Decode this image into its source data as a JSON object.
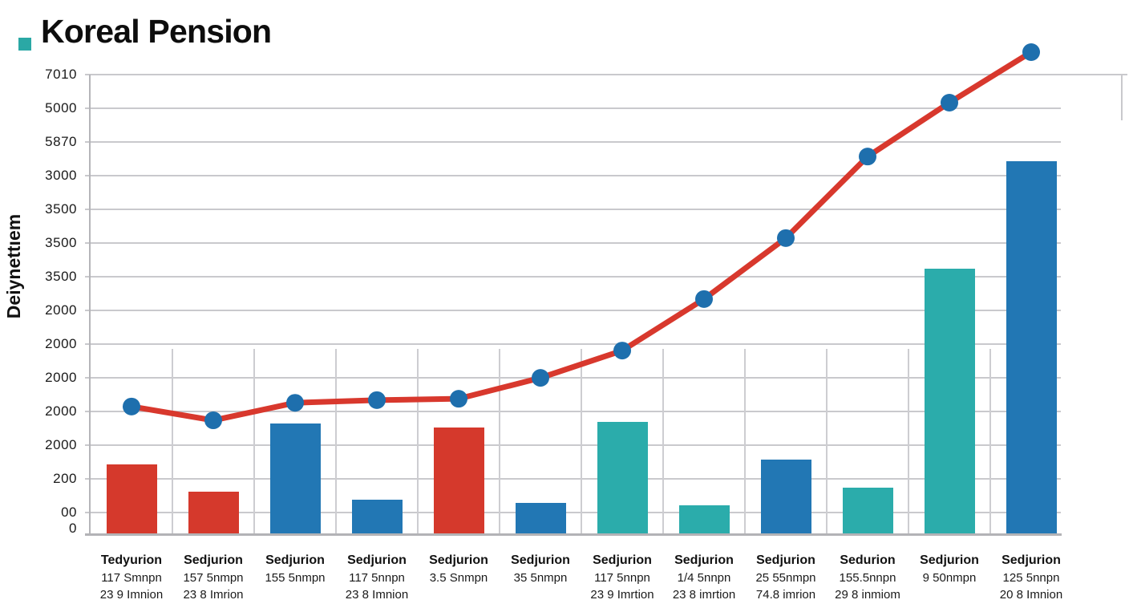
{
  "header": {
    "title": "Koreal Pension",
    "bullet_color": "#2aa8a5"
  },
  "chart_data": {
    "type": "bar",
    "subtype": "bar-with-line-overlay",
    "title": "Koreal Pension",
    "xlabel": "",
    "ylabel": "Deiynettıem",
    "grid": "horizontal-on, partial-vertical-on",
    "legend": "none",
    "value_units_note": "values estimated in gridline units (1 unit = one horizontal gridline gap); axis tick text is garbled in source image",
    "y_tick_labels": [
      "7010",
      "5000",
      "5870",
      "3000",
      "3500",
      "3500",
      "3500",
      "2000",
      "2000",
      "2000",
      "2000",
      "2000",
      "200",
      "00",
      "0"
    ],
    "categories": [
      {
        "line1": "Tedyurion",
        "line2": "117 Smnpn",
        "line3": "23 9 Imnion"
      },
      {
        "line1": "Sedjurion",
        "line2": "157 5nmpn",
        "line3": "23 8 Imrion"
      },
      {
        "line1": "Sedjurion",
        "line2": "155 5nmpn",
        "line3": ""
      },
      {
        "line1": "Sedjurion",
        "line2": "117 5nnpn",
        "line3": "23 8 Imnion"
      },
      {
        "line1": "Sedjurion",
        "line2": "3.5 Snmpn",
        "line3": ""
      },
      {
        "line1": "Sedjurion",
        "line2": "35 5nmpn",
        "line3": ""
      },
      {
        "line1": "Sedjurion",
        "line2": "117 5nnpn",
        "line3": "23 9 Imrtion"
      },
      {
        "line1": "Sedjurion",
        "line2": "1/4 5nnpn",
        "line3": "23 8 imrtion"
      },
      {
        "line1": "Sedjurion",
        "line2": "25 55nmpn",
        "line3": "74.8 imrion"
      },
      {
        "line1": "Sedurion",
        "line2": "155.5nnpn",
        "line3": "29 8 inmiom"
      },
      {
        "line1": "Sedjurion",
        "line2": "9 50nmpn",
        "line3": ""
      },
      {
        "line1": "Sedjurion",
        "line2": "125 5nnpn",
        "line3": "20 8 Imnion"
      }
    ],
    "series": [
      {
        "name": "bars",
        "kind": "bar",
        "values": [
          2.07,
          1.26,
          3.29,
          1.02,
          3.17,
          0.93,
          3.33,
          0.86,
          2.21,
          1.38,
          7.88,
          11.07
        ],
        "colors": [
          "red",
          "red",
          "blue",
          "blue",
          "red",
          "blue",
          "teal",
          "teal",
          "blue",
          "teal",
          "teal",
          "blue"
        ]
      },
      {
        "name": "trend-line",
        "kind": "line",
        "values": [
          3.79,
          3.38,
          3.9,
          3.98,
          4.02,
          4.64,
          5.45,
          6.98,
          8.79,
          11.21,
          12.81,
          14.31
        ]
      }
    ],
    "palette": {
      "red": "#d5392c",
      "blue": "#2277b4",
      "teal": "#2bacab",
      "line": "#d8382d",
      "marker": "#1e6fad",
      "grid": "#c9c9cd",
      "axis": "#b3b3b6",
      "text": "#1a1a1a"
    }
  }
}
